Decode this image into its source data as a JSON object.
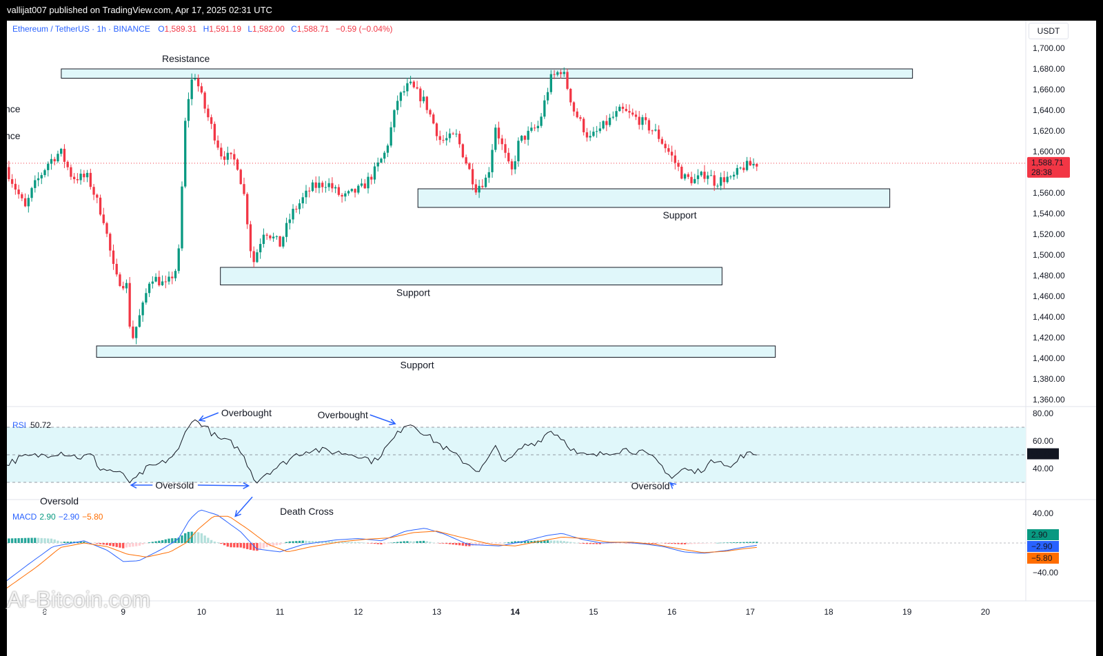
{
  "header": {
    "published": "vallijat007 published on TradingView.com, Apr 17, 2025 02:31 UTC"
  },
  "legend": {
    "symbol": "Ethereum / TetherUS · 1h · BINANCE",
    "o_label": "O",
    "o_value": "1,589.31",
    "h_label": "H",
    "h_value": "1,591.19",
    "l_label": "L",
    "l_value": "1,582.00",
    "c_label": "C",
    "c_value": "1,588.71",
    "change": "−0.59 (−0.04%)"
  },
  "currency": "USDT",
  "colors": {
    "up": "#089981",
    "down": "#f23645",
    "zone_fill": "#e0f7fa",
    "rsi": "#131722",
    "macd": "#2962ff",
    "signal": "#ff6d00",
    "accent": "#2962ff"
  },
  "watermark": "Ar-Bitcoin.com",
  "logo": "TradingView",
  "chart_data": [
    {
      "type": "candlestick",
      "title": "Ethereum / TetherUS · 1h · BINANCE",
      "ylabel": "USDT",
      "ylim": [
        1350,
        1710
      ],
      "yticks": [
        "1,700.00",
        "1,680.00",
        "1,660.00",
        "1,640.00",
        "1,620.00",
        "1,600.00",
        "1,580.00",
        "1,560.00",
        "1,540.00",
        "1,520.00",
        "1,500.00",
        "1,480.00",
        "1,460.00",
        "1,440.00",
        "1,420.00",
        "1,400.00",
        "1,380.00",
        "1,360.00"
      ],
      "xticks": [
        "8",
        "9",
        "10",
        "11",
        "12",
        "13",
        "14",
        "15",
        "16",
        "17",
        "18",
        "19",
        "20"
      ],
      "xlim_days": [
        7.5,
        20.5
      ],
      "last_price": "1,588.71",
      "countdown": "28:38",
      "path": [
        [
          7.5,
          1585
        ],
        [
          7.75,
          1545
        ],
        [
          7.85,
          1565
        ],
        [
          8.05,
          1590
        ],
        [
          8.2,
          1600
        ],
        [
          8.35,
          1575
        ],
        [
          8.55,
          1575
        ],
        [
          8.75,
          1535
        ],
        [
          8.9,
          1478
        ],
        [
          9.05,
          1470
        ],
        [
          9.1,
          1415
        ],
        [
          9.25,
          1450
        ],
        [
          9.35,
          1480
        ],
        [
          9.55,
          1470
        ],
        [
          9.7,
          1490
        ],
        [
          9.8,
          1640
        ],
        [
          9.9,
          1678
        ],
        [
          10.05,
          1640
        ],
        [
          10.25,
          1598
        ],
        [
          10.45,
          1590
        ],
        [
          10.55,
          1555
        ],
        [
          10.65,
          1490
        ],
        [
          10.8,
          1525
        ],
        [
          11.0,
          1510
        ],
        [
          11.15,
          1540
        ],
        [
          11.4,
          1565
        ],
        [
          11.6,
          1570
        ],
        [
          11.8,
          1555
        ],
        [
          12.05,
          1565
        ],
        [
          12.2,
          1580
        ],
        [
          12.35,
          1600
        ],
        [
          12.5,
          1650
        ],
        [
          12.65,
          1665
        ],
        [
          12.85,
          1648
        ],
        [
          13.05,
          1610
        ],
        [
          13.25,
          1615
        ],
        [
          13.5,
          1565
        ],
        [
          13.65,
          1575
        ],
        [
          13.75,
          1625
        ],
        [
          13.95,
          1578
        ],
        [
          14.05,
          1610
        ],
        [
          14.3,
          1625
        ],
        [
          14.45,
          1670
        ],
        [
          14.6,
          1680
        ],
        [
          14.75,
          1640
        ],
        [
          14.95,
          1612
        ],
        [
          15.2,
          1630
        ],
        [
          15.35,
          1640
        ],
        [
          15.6,
          1630
        ],
        [
          15.8,
          1618
        ],
        [
          16.0,
          1595
        ],
        [
          16.15,
          1575
        ],
        [
          16.3,
          1572
        ],
        [
          16.45,
          1580
        ],
        [
          16.55,
          1570
        ],
        [
          16.7,
          1575
        ],
        [
          16.75,
          1572
        ],
        [
          16.9,
          1585
        ],
        [
          17.1,
          1588.71
        ]
      ],
      "zones": [
        {
          "label": "Resistance",
          "x0": 8.21,
          "x1": 19.07,
          "y0": 1671,
          "y1": 1680,
          "label_x": 9.8,
          "label_pos": "above"
        },
        {
          "label": "Support",
          "x0": 12.76,
          "x1": 18.78,
          "y0": 1546,
          "y1": 1564,
          "label_x": 16.1,
          "label_pos": "below"
        },
        {
          "label": "Support",
          "x0": 10.24,
          "x1": 16.64,
          "y0": 1471,
          "y1": 1488,
          "label_x": 12.7,
          "label_pos": "below"
        },
        {
          "label": "Support",
          "x0": 8.66,
          "x1": 17.32,
          "y0": 1401,
          "y1": 1412,
          "label_x": 12.75,
          "label_pos": "below"
        }
      ]
    },
    {
      "type": "line",
      "title": "RSI",
      "name": "RSI",
      "last_value": "50.72",
      "ylim": [
        23,
        85
      ],
      "yticks": [
        "80.00",
        "60.00",
        "40.00"
      ],
      "band": [
        30,
        70
      ],
      "midline": 50,
      "path": [
        [
          7.5,
          43
        ],
        [
          7.7,
          48
        ],
        [
          8.0,
          50
        ],
        [
          8.2,
          52
        ],
        [
          8.45,
          48
        ],
        [
          8.6,
          50
        ],
        [
          8.7,
          40
        ],
        [
          8.9,
          38
        ],
        [
          9.05,
          33
        ],
        [
          9.1,
          29
        ],
        [
          9.3,
          40
        ],
        [
          9.5,
          44
        ],
        [
          9.7,
          52
        ],
        [
          9.85,
          75
        ],
        [
          10.0,
          73
        ],
        [
          10.2,
          62
        ],
        [
          10.4,
          58
        ],
        [
          10.5,
          52
        ],
        [
          10.6,
          42
        ],
        [
          10.7,
          30
        ],
        [
          10.8,
          36
        ],
        [
          11.0,
          42
        ],
        [
          11.2,
          50
        ],
        [
          11.4,
          54
        ],
        [
          11.7,
          52
        ],
        [
          12.0,
          50
        ],
        [
          12.2,
          45
        ],
        [
          12.4,
          58
        ],
        [
          12.5,
          65
        ],
        [
          12.6,
          73
        ],
        [
          12.7,
          72
        ],
        [
          12.9,
          63
        ],
        [
          13.1,
          55
        ],
        [
          13.35,
          45
        ],
        [
          13.55,
          38
        ],
        [
          13.75,
          55
        ],
        [
          13.9,
          44
        ],
        [
          14.1,
          56
        ],
        [
          14.3,
          60
        ],
        [
          14.45,
          68
        ],
        [
          14.6,
          62
        ],
        [
          14.8,
          50
        ],
        [
          15.0,
          49
        ],
        [
          15.2,
          52
        ],
        [
          15.4,
          54
        ],
        [
          15.6,
          52
        ],
        [
          15.8,
          46
        ],
        [
          15.95,
          37
        ],
        [
          16.0,
          33
        ],
        [
          16.15,
          40
        ],
        [
          16.3,
          37
        ],
        [
          16.45,
          42
        ],
        [
          16.6,
          48
        ],
        [
          16.75,
          40
        ],
        [
          16.9,
          50
        ],
        [
          17.1,
          50.72
        ]
      ],
      "annotations": [
        {
          "text": "Overbought",
          "x": 10.25,
          "value": 78,
          "arrow_to": [
            9.97,
            75
          ]
        },
        {
          "text": "Overbought",
          "x": 11.48,
          "value": 76.5,
          "arrow_to": [
            12.47,
            72.5
          ]
        },
        {
          "text": "Oversold",
          "x": 9.41,
          "value": 25.5,
          "arrow_to": [
            9.1,
            28
          ],
          "arrow_to2": [
            10.6,
            27.5
          ]
        },
        {
          "text": "Oversold",
          "x": 15.48,
          "value": 25,
          "arrow_to": [
            15.98,
            29.5
          ]
        }
      ]
    },
    {
      "type": "line",
      "title": "MACD",
      "series": [
        {
          "name": "Histogram",
          "last_value": "2.90"
        },
        {
          "name": "MACD",
          "last_value": "−2.90"
        },
        {
          "name": "Signal",
          "last_value": "−5.80"
        }
      ],
      "ylim": [
        -55,
        55
      ],
      "yticks": [
        "40.00",
        "−40.00"
      ],
      "macd": [
        [
          7.5,
          -52
        ],
        [
          7.8,
          -28
        ],
        [
          8.1,
          -5
        ],
        [
          8.5,
          3
        ],
        [
          8.8,
          -10
        ],
        [
          9.0,
          -25
        ],
        [
          9.2,
          -24
        ],
        [
          9.5,
          -8
        ],
        [
          9.7,
          5
        ],
        [
          9.85,
          32
        ],
        [
          9.98,
          45
        ],
        [
          10.2,
          38
        ],
        [
          10.5,
          15
        ],
        [
          10.7,
          -8
        ],
        [
          11.0,
          -12
        ],
        [
          11.3,
          -2
        ],
        [
          11.7,
          4
        ],
        [
          12.0,
          6
        ],
        [
          12.3,
          3
        ],
        [
          12.6,
          16
        ],
        [
          12.85,
          20
        ],
        [
          13.1,
          12
        ],
        [
          13.4,
          -2
        ],
        [
          13.8,
          -4
        ],
        [
          14.1,
          2
        ],
        [
          14.4,
          10
        ],
        [
          14.6,
          13
        ],
        [
          14.85,
          5
        ],
        [
          15.1,
          0
        ],
        [
          15.4,
          1
        ],
        [
          15.7,
          -2
        ],
        [
          15.9,
          -5
        ],
        [
          16.15,
          -12
        ],
        [
          16.4,
          -14
        ],
        [
          16.7,
          -10
        ],
        [
          16.9,
          -6
        ],
        [
          17.1,
          -2.9
        ]
      ],
      "signal": [
        [
          7.5,
          -62
        ],
        [
          7.9,
          -32
        ],
        [
          8.2,
          -6
        ],
        [
          8.5,
          0
        ],
        [
          8.8,
          -5
        ],
        [
          9.05,
          -15
        ],
        [
          9.3,
          -19
        ],
        [
          9.6,
          -12
        ],
        [
          9.8,
          0
        ],
        [
          9.95,
          18
        ],
        [
          10.15,
          36
        ],
        [
          10.35,
          36
        ],
        [
          10.6,
          18
        ],
        [
          10.85,
          -2
        ],
        [
          11.1,
          -12
        ],
        [
          11.4,
          -5
        ],
        [
          11.8,
          2
        ],
        [
          12.1,
          5
        ],
        [
          12.4,
          7
        ],
        [
          12.7,
          14
        ],
        [
          13.0,
          16
        ],
        [
          13.3,
          8
        ],
        [
          13.7,
          -2
        ],
        [
          14.0,
          -4
        ],
        [
          14.3,
          2
        ],
        [
          14.6,
          8
        ],
        [
          14.9,
          6
        ],
        [
          15.2,
          1
        ],
        [
          15.5,
          1
        ],
        [
          15.8,
          -2
        ],
        [
          16.1,
          -8
        ],
        [
          16.4,
          -13
        ],
        [
          16.7,
          -11
        ],
        [
          16.9,
          -8
        ],
        [
          17.1,
          -5.8
        ]
      ],
      "annotations": [
        {
          "text": "Death Cross",
          "x": 11.0,
          "value": 38,
          "arrow_to": [
            10.43,
            36
          ]
        }
      ]
    }
  ]
}
